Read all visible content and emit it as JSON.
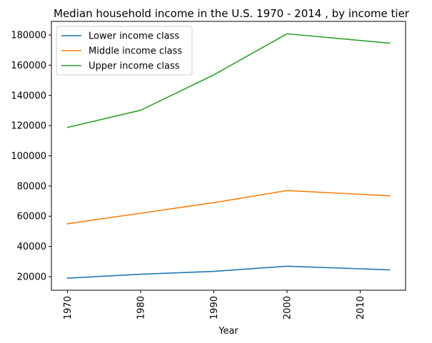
{
  "chart_data": {
    "type": "line",
    "title": "Median household income in the U.S. 1970 - 2014 , by income tier",
    "xlabel": "Year",
    "ylabel": "",
    "x": [
      1970,
      1980,
      1990,
      2000,
      2014
    ],
    "xlim": [
      1967.8,
      2016.2
    ],
    "ylim": [
      11000,
      189000
    ],
    "xticks": [
      1970,
      1980,
      1990,
      2000,
      2010
    ],
    "yticks": [
      20000,
      40000,
      60000,
      80000,
      100000,
      120000,
      140000,
      160000,
      180000
    ],
    "xtick_rotation": "vertical",
    "legend_position": "upper-left",
    "grid": false,
    "series": [
      {
        "name": "Lower income class",
        "color": "#1f77b4",
        "values": [
          19000,
          21600,
          23500,
          26900,
          24500
        ]
      },
      {
        "name": "Middle income class",
        "color": "#ff7f0e",
        "values": [
          55000,
          62000,
          69000,
          77000,
          73500
        ]
      },
      {
        "name": "Upper income class",
        "color": "#2ca02c",
        "values": [
          118800,
          130200,
          153600,
          180800,
          174600
        ]
      }
    ]
  }
}
